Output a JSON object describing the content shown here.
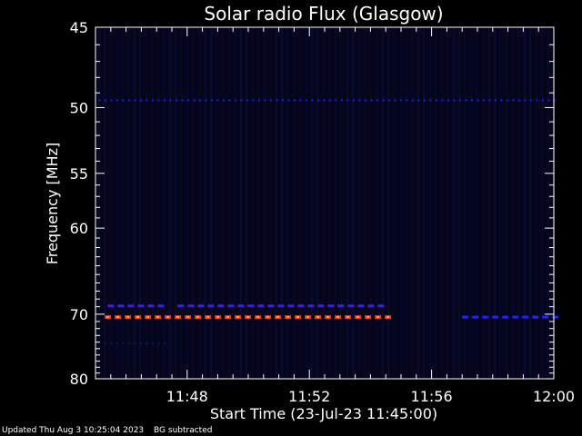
{
  "chart_data": {
    "type": "heatmap",
    "title": "Solar radio Flux (Glasgow)",
    "xlabel": "Start Time (23-Jul-23 11:45:00)",
    "ylabel": "Frequency [MHz]",
    "x_range_minutes": [
      0,
      15
    ],
    "x_ticks": [
      {
        "minute": 3,
        "label": "11:48"
      },
      {
        "minute": 7,
        "label": "11:52"
      },
      {
        "minute": 11,
        "label": "11:56"
      },
      {
        "minute": 15,
        "label": "12:00"
      }
    ],
    "y_ticks": [
      {
        "mhz": 45,
        "label": "45"
      },
      {
        "mhz": 50,
        "label": "50"
      },
      {
        "mhz": 55,
        "label": "55"
      },
      {
        "mhz": 60,
        "label": "60"
      },
      {
        "mhz": 70,
        "label": "70"
      },
      {
        "mhz": 80,
        "label": "80"
      }
    ],
    "bands": [
      {
        "mhz": 49.5,
        "start_min": 0.1,
        "end_min": 15,
        "color": "#1a1aff",
        "intensity": "low"
      },
      {
        "mhz": 68.9,
        "start_min": 0.4,
        "end_min": 9.5,
        "color": "#3d1aff",
        "intensity": "medium",
        "gap": [
          2.2,
          2.6
        ]
      },
      {
        "mhz": 70.4,
        "start_min": 0.3,
        "end_min": 9.5,
        "color": "#ff3300",
        "intensity": "high"
      },
      {
        "mhz": 70.4,
        "start_min": 12,
        "end_min": 15,
        "color": "#2222ff",
        "intensity": "medium"
      },
      {
        "mhz": 74.2,
        "start_min": 0.3,
        "end_min": 2.3,
        "color": "#141466",
        "intensity": "low"
      }
    ]
  },
  "footer": {
    "updated": "Updated Thu Aug  3 10:25:04 2023",
    "note": "BG subtracted"
  }
}
